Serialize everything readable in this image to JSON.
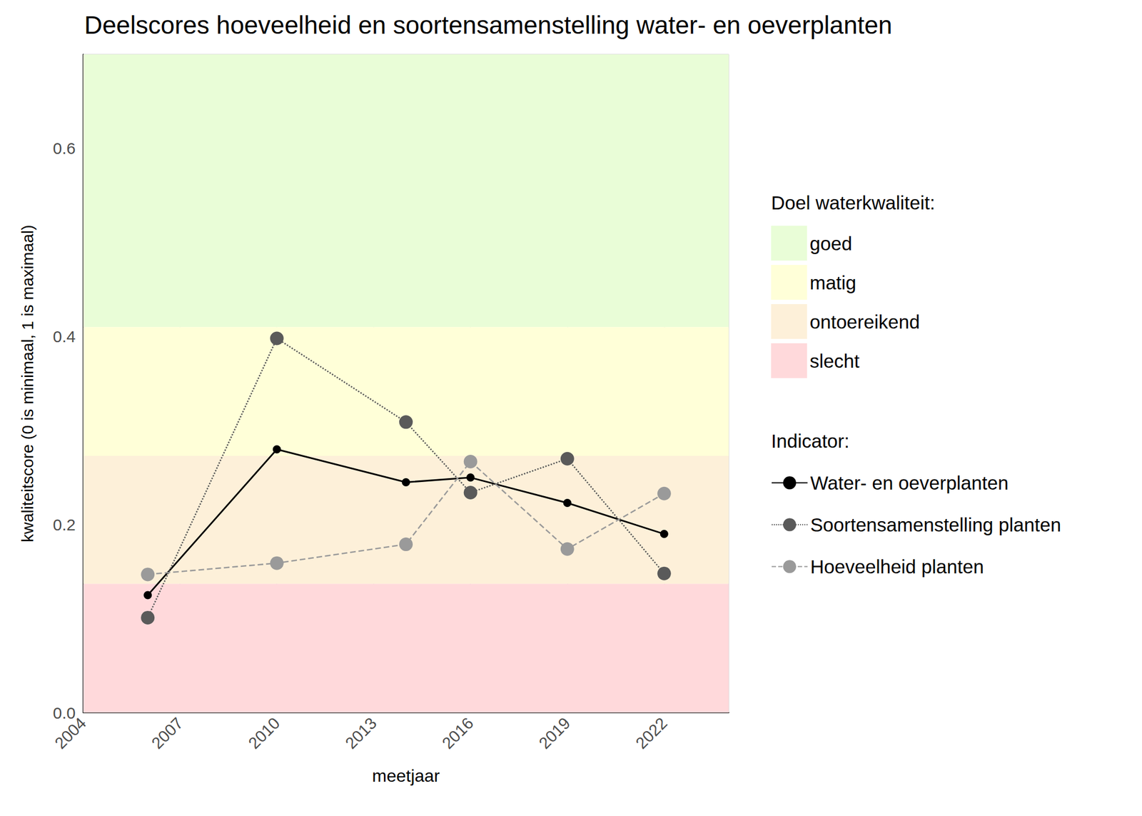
{
  "chart_data": {
    "type": "line",
    "title": "Deelscores hoeveelheid en soortensamenstelling water- en oeverplanten",
    "x_label": "meetjaar",
    "y_label": "kwaliteitscore (0 is minimaal, 1 is maximaal)",
    "xlim": [
      2004,
      2024
    ],
    "xticks": [
      2004,
      2007,
      2010,
      2013,
      2016,
      2019,
      2022
    ],
    "ylim": [
      0,
      0.7
    ],
    "yticks": [
      {
        "value": 0,
        "label": "0.0"
      },
      {
        "value": 0.2,
        "label": "0.2"
      },
      {
        "value": 0.4,
        "label": "0.4"
      },
      {
        "value": 0.6,
        "label": "0.6"
      }
    ],
    "grid": true,
    "legend": "right",
    "bands_title": "Doel waterkwaliteit:",
    "bands": [
      {
        "name": "goed",
        "from": 0.41,
        "to": 0.7,
        "color": "#e9fdd7"
      },
      {
        "name": "matig",
        "from": 0.273,
        "to": 0.41,
        "color": "#ffffd8"
      },
      {
        "name": "ontoereikend",
        "from": 0.137,
        "to": 0.273,
        "color": "#fdf0d9"
      },
      {
        "name": "slecht",
        "from": 0,
        "to": 0.137,
        "color": "#ffd9db"
      }
    ],
    "legend_title": "Indicator:",
    "x": [
      2006,
      2010,
      2014,
      2016,
      2019,
      2022
    ],
    "series": [
      {
        "name": "Water- en oeverplanten",
        "color": "#000000",
        "line_style": "solid",
        "marker": "point",
        "values": [
          0.125,
          0.28,
          0.245,
          0.25,
          0.223,
          0.19
        ]
      },
      {
        "name": "Soortensamenstelling planten",
        "color": "#5a5a5a",
        "line_style": "dotted",
        "marker": "circle",
        "values": [
          0.101,
          0.398,
          0.309,
          0.234,
          0.27,
          0.148
        ]
      },
      {
        "name": "Hoeveelheid planten",
        "color": "#9a9a9a",
        "line_style": "dashed",
        "marker": "circle",
        "values": [
          0.147,
          0.159,
          0.179,
          0.267,
          0.174,
          0.233
        ]
      }
    ]
  }
}
